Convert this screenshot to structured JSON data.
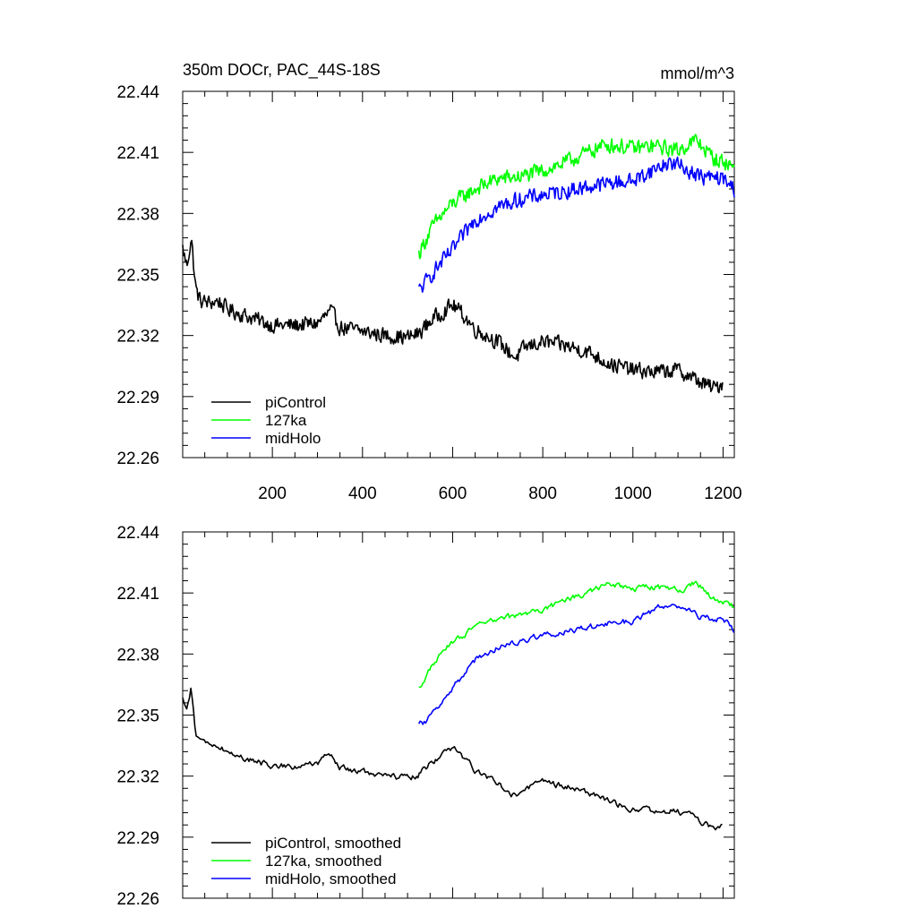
{
  "chart_data": [
    {
      "type": "line",
      "title": "350m DOCr, PAC_44S-18S",
      "units": "mmol/m^3",
      "xlabel": "",
      "ylabel": "",
      "xlim": [
        1,
        1225
      ],
      "ylim": [
        22.26,
        22.44
      ],
      "x_ticks": [
        200,
        400,
        600,
        800,
        1000,
        1200
      ],
      "y_ticks": [
        22.26,
        22.29,
        22.32,
        22.35,
        22.38,
        22.41,
        22.44
      ],
      "y_tick_labels": [
        "22.26",
        "22.29",
        "22.32",
        "22.35",
        "22.38",
        "22.41",
        "22.44"
      ],
      "x_tick_labels": [
        "200",
        "400",
        "600",
        "800",
        "1000",
        "1200"
      ],
      "legend_position": "bottom-left",
      "series": [
        {
          "name": "piControl",
          "color": "#000000",
          "x": [
            1,
            10,
            20,
            30,
            40,
            60,
            80,
            100,
            150,
            200,
            250,
            300,
            330,
            350,
            400,
            450,
            500,
            525,
            550,
            580,
            600,
            620,
            650,
            700,
            740,
            760,
            800,
            850,
            900,
            950,
            1000,
            1050,
            1100,
            1150,
            1180,
            1200
          ],
          "values": [
            22.363,
            22.354,
            22.368,
            22.343,
            22.337,
            22.336,
            22.337,
            22.333,
            22.329,
            22.325,
            22.325,
            22.326,
            22.332,
            22.324,
            22.322,
            22.32,
            22.319,
            22.321,
            22.327,
            22.332,
            22.335,
            22.331,
            22.323,
            22.317,
            22.309,
            22.314,
            22.317,
            22.315,
            22.312,
            22.306,
            22.303,
            22.302,
            22.303,
            22.297,
            22.294,
            22.297
          ]
        },
        {
          "name": "127ka",
          "color": "#00ff00",
          "x": [
            525,
            540,
            560,
            600,
            650,
            700,
            750,
            800,
            850,
            900,
            940,
            1000,
            1050,
            1100,
            1140,
            1180,
            1225
          ],
          "values": [
            22.36,
            22.367,
            22.375,
            22.385,
            22.392,
            22.397,
            22.398,
            22.401,
            22.405,
            22.41,
            22.414,
            22.412,
            22.413,
            22.411,
            22.416,
            22.407,
            22.403
          ]
        },
        {
          "name": "midHolo",
          "color": "#0000ff",
          "x": [
            525,
            540,
            560,
            600,
            650,
            700,
            750,
            800,
            850,
            900,
            950,
            1000,
            1050,
            1080,
            1100,
            1150,
            1200,
            1225
          ],
          "values": [
            22.342,
            22.346,
            22.352,
            22.362,
            22.377,
            22.383,
            22.387,
            22.389,
            22.391,
            22.393,
            22.395,
            22.396,
            22.402,
            22.405,
            22.404,
            22.398,
            22.397,
            22.392
          ]
        }
      ]
    },
    {
      "type": "line",
      "title": "",
      "units": "",
      "xlabel": "",
      "ylabel": "",
      "xlim": [
        1,
        1225
      ],
      "ylim": [
        22.26,
        22.44
      ],
      "x_ticks": [
        200,
        400,
        600,
        800,
        1000,
        1200
      ],
      "y_ticks": [
        22.26,
        22.29,
        22.32,
        22.35,
        22.38,
        22.41,
        22.44
      ],
      "y_tick_labels": [
        "22.26",
        "22.29",
        "22.32",
        "22.35",
        "22.38",
        "22.41",
        "22.44"
      ],
      "x_tick_labels": [],
      "legend_position": "bottom-left",
      "series": [
        {
          "name": "piControl, smoothed",
          "color": "#000000",
          "x": [
            1,
            10,
            20,
            30,
            40,
            60,
            80,
            100,
            150,
            200,
            250,
            300,
            330,
            350,
            400,
            450,
            500,
            525,
            550,
            580,
            600,
            620,
            650,
            700,
            740,
            760,
            800,
            850,
            900,
            950,
            1000,
            1050,
            1100,
            1150,
            1180,
            1200
          ],
          "values": [
            22.358,
            22.352,
            22.364,
            22.34,
            22.337,
            22.336,
            22.335,
            22.332,
            22.328,
            22.325,
            22.325,
            22.326,
            22.331,
            22.324,
            22.322,
            22.32,
            22.319,
            22.321,
            22.326,
            22.331,
            22.334,
            22.33,
            22.323,
            22.317,
            22.31,
            22.314,
            22.317,
            22.315,
            22.312,
            22.307,
            22.304,
            22.303,
            22.303,
            22.298,
            22.294,
            22.297
          ]
        },
        {
          "name": "127ka, smoothed",
          "color": "#00ff00",
          "x": [
            525,
            540,
            560,
            600,
            650,
            700,
            750,
            800,
            850,
            900,
            940,
            1000,
            1050,
            1100,
            1140,
            1180,
            1225
          ],
          "values": [
            22.363,
            22.369,
            22.376,
            22.386,
            22.393,
            22.397,
            22.399,
            22.402,
            22.406,
            22.41,
            22.414,
            22.412,
            22.413,
            22.411,
            22.415,
            22.407,
            22.403
          ]
        },
        {
          "name": "midHolo, smoothed",
          "color": "#0000ff",
          "x": [
            525,
            540,
            560,
            600,
            650,
            700,
            750,
            800,
            850,
            900,
            950,
            1000,
            1050,
            1080,
            1100,
            1150,
            1200,
            1225
          ],
          "values": [
            22.345,
            22.347,
            22.353,
            22.363,
            22.377,
            22.383,
            22.387,
            22.389,
            22.391,
            22.393,
            22.395,
            22.396,
            22.402,
            22.405,
            22.404,
            22.398,
            22.397,
            22.392
          ]
        }
      ]
    }
  ]
}
